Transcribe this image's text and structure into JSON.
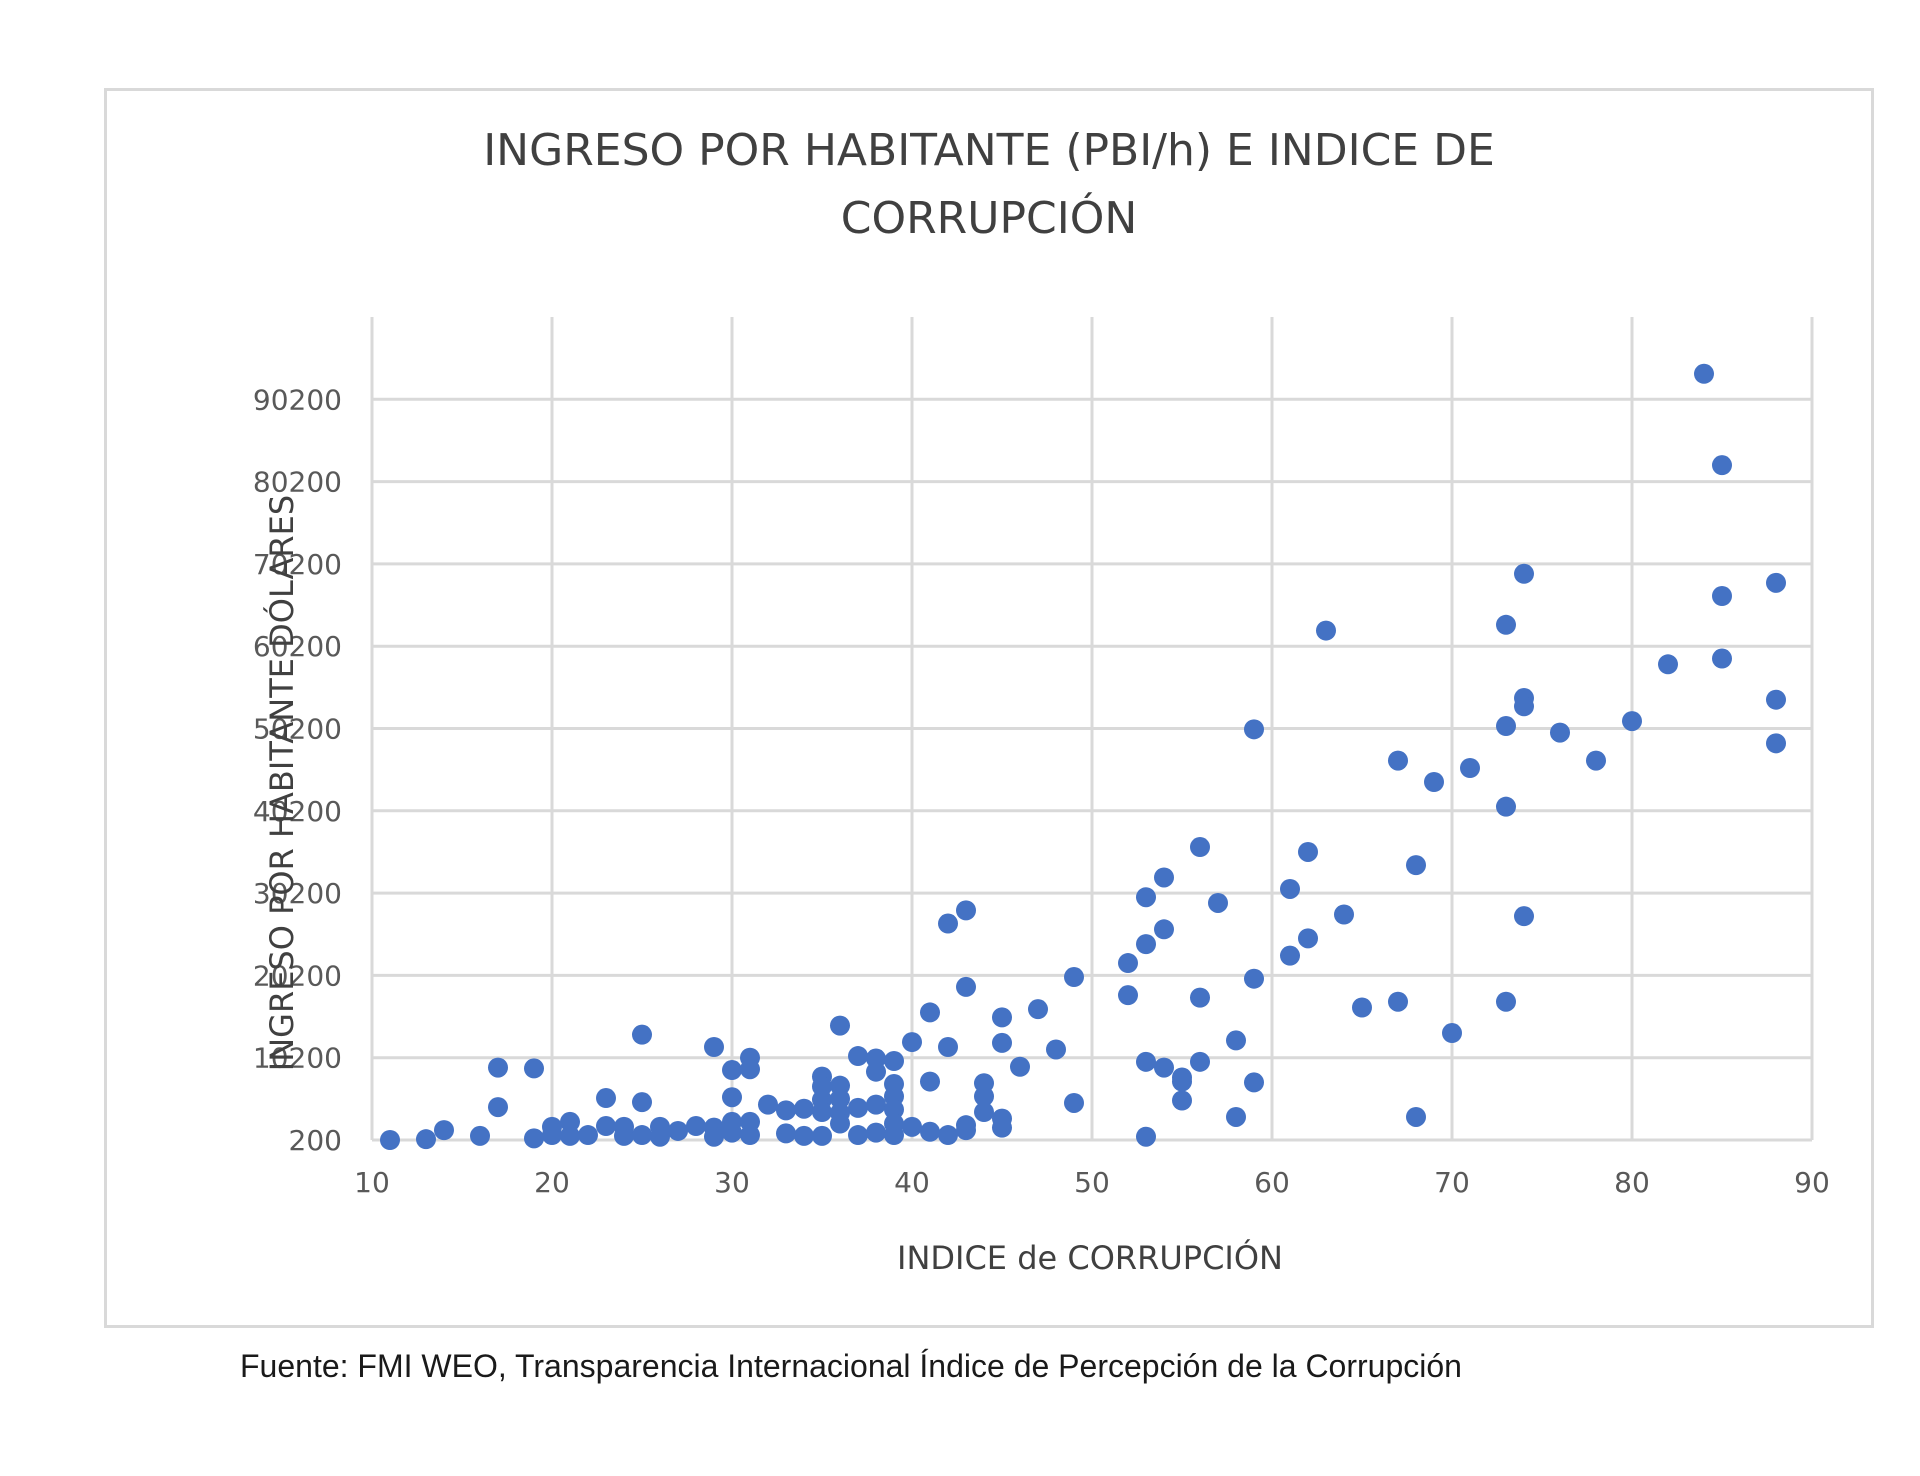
{
  "chart_data": {
    "type": "scatter",
    "title_lines": [
      "INGRESO  POR HABITANTE (PBI/h) E INDICE DE",
      "CORRUPCIÓN"
    ],
    "xlabel": "INDICE de CORRUPCIÓN",
    "ylabel": "INGRESO POR HABITANTE DÓLARES",
    "xlim": [
      10,
      90
    ],
    "ylim": [
      200,
      100200
    ],
    "xticks": [
      "10",
      "20",
      "30",
      "40",
      "50",
      "60",
      "70",
      "80",
      "90"
    ],
    "yticks": [
      "200",
      "10200",
      "20200",
      "30200",
      "40200",
      "50200",
      "60200",
      "70200",
      "80200",
      "90200"
    ],
    "grid": true,
    "marker_color": "#4472c4",
    "points": [
      [
        11,
        200
      ],
      [
        13,
        300
      ],
      [
        14,
        1400
      ],
      [
        16,
        700
      ],
      [
        17,
        9000
      ],
      [
        17,
        4200
      ],
      [
        19,
        8900
      ],
      [
        19,
        400
      ],
      [
        20,
        1800
      ],
      [
        20,
        800
      ],
      [
        21,
        2400
      ],
      [
        21,
        700
      ],
      [
        22,
        800
      ],
      [
        23,
        5300
      ],
      [
        23,
        1900
      ],
      [
        24,
        1800
      ],
      [
        24,
        700
      ],
      [
        25,
        13000
      ],
      [
        25,
        4800
      ],
      [
        25,
        800
      ],
      [
        26,
        1800
      ],
      [
        26,
        600
      ],
      [
        27,
        1300
      ],
      [
        28,
        1900
      ],
      [
        29,
        11500
      ],
      [
        29,
        1700
      ],
      [
        29,
        600
      ],
      [
        30,
        8700
      ],
      [
        30,
        5400
      ],
      [
        30,
        2400
      ],
      [
        30,
        1100
      ],
      [
        31,
        10200
      ],
      [
        31,
        8800
      ],
      [
        31,
        2400
      ],
      [
        31,
        800
      ],
      [
        32,
        4500
      ],
      [
        33,
        3800
      ],
      [
        33,
        1000
      ],
      [
        34,
        4000
      ],
      [
        34,
        700
      ],
      [
        35,
        7900
      ],
      [
        35,
        6700
      ],
      [
        35,
        5100
      ],
      [
        35,
        3600
      ],
      [
        35,
        700
      ],
      [
        36,
        14100
      ],
      [
        36,
        6800
      ],
      [
        36,
        5200
      ],
      [
        36,
        3500
      ],
      [
        36,
        2200
      ],
      [
        37,
        10400
      ],
      [
        37,
        4100
      ],
      [
        37,
        800
      ],
      [
        38,
        10100
      ],
      [
        38,
        8500
      ],
      [
        38,
        4500
      ],
      [
        38,
        1100
      ],
      [
        39,
        9800
      ],
      [
        39,
        7000
      ],
      [
        39,
        5500
      ],
      [
        39,
        3900
      ],
      [
        39,
        2200
      ],
      [
        39,
        800
      ],
      [
        40,
        12100
      ],
      [
        40,
        1800
      ],
      [
        41,
        15700
      ],
      [
        41,
        7300
      ],
      [
        41,
        1200
      ],
      [
        42,
        26500
      ],
      [
        42,
        11500
      ],
      [
        42,
        800
      ],
      [
        43,
        28100
      ],
      [
        43,
        18800
      ],
      [
        43,
        2000
      ],
      [
        43,
        1400
      ],
      [
        44,
        7100
      ],
      [
        44,
        5500
      ],
      [
        44,
        3600
      ],
      [
        45,
        15100
      ],
      [
        45,
        12000
      ],
      [
        45,
        2800
      ],
      [
        45,
        1700
      ],
      [
        46,
        9100
      ],
      [
        47,
        16100
      ],
      [
        48,
        11200
      ],
      [
        49,
        20000
      ],
      [
        49,
        4700
      ],
      [
        52,
        21700
      ],
      [
        52,
        17800
      ],
      [
        53,
        29700
      ],
      [
        53,
        24000
      ],
      [
        53,
        9700
      ],
      [
        53,
        600
      ],
      [
        54,
        32100
      ],
      [
        54,
        25800
      ],
      [
        54,
        9000
      ],
      [
        55,
        7800
      ],
      [
        55,
        7300
      ],
      [
        55,
        5000
      ],
      [
        56,
        35800
      ],
      [
        56,
        17500
      ],
      [
        56,
        9700
      ],
      [
        57,
        29000
      ],
      [
        58,
        12300
      ],
      [
        58,
        3000
      ],
      [
        59,
        50100
      ],
      [
        59,
        19800
      ],
      [
        59,
        7200
      ],
      [
        61,
        30700
      ],
      [
        61,
        22600
      ],
      [
        62,
        35200
      ],
      [
        62,
        24700
      ],
      [
        63,
        62100
      ],
      [
        64,
        27600
      ],
      [
        65,
        16300
      ],
      [
        67,
        46300
      ],
      [
        67,
        17000
      ],
      [
        68,
        33600
      ],
      [
        68,
        3000
      ],
      [
        69,
        43700
      ],
      [
        70,
        13200
      ],
      [
        71,
        45400
      ],
      [
        73,
        62800
      ],
      [
        73,
        50500
      ],
      [
        73,
        40700
      ],
      [
        73,
        17000
      ],
      [
        74,
        69000
      ],
      [
        74,
        53900
      ],
      [
        74,
        52900
      ],
      [
        74,
        27400
      ],
      [
        76,
        49700
      ],
      [
        78,
        46300
      ],
      [
        80,
        51100
      ],
      [
        82,
        58000
      ],
      [
        84,
        93300
      ],
      [
        85,
        82200
      ],
      [
        85,
        66300
      ],
      [
        85,
        58700
      ],
      [
        88,
        67900
      ],
      [
        88,
        53700
      ],
      [
        88,
        48400
      ]
    ]
  },
  "footer": {
    "source": "Fuente: FMI WEO, Transparencia Internacional Índice de Percepción de la Corrupción"
  }
}
